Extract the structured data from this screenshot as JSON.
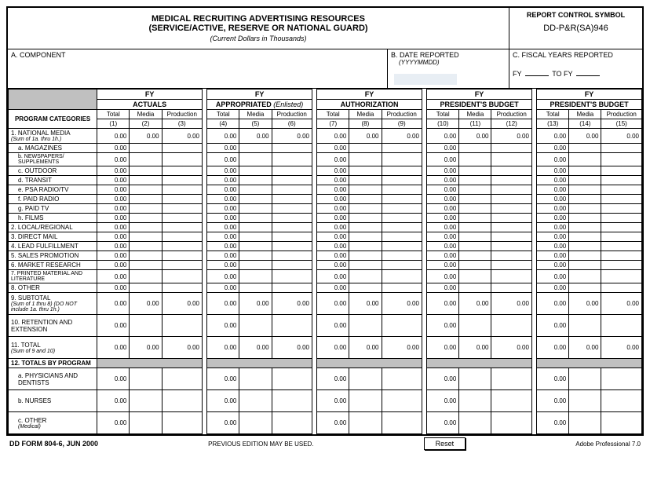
{
  "header": {
    "title1": "MEDICAL RECRUITING ADVERTISING RESOURCES",
    "title2": "(SERVICE/ACTIVE, RESERVE OR NATIONAL GUARD)",
    "subtitle": "(Current Dollars in Thousands)",
    "rcs_label": "REPORT CONTROL SYMBOL",
    "rcs_value": "DD-P&R(SA)946"
  },
  "sections": {
    "a_label": "A.  COMPONENT",
    "b_label": "B.  DATE REPORTED",
    "b_sub": "(YYYYMMDD)",
    "c_label": "C.  FISCAL YEARS REPORTED",
    "fy_prefix": "FY",
    "to": "TO FY"
  },
  "col_groups": {
    "g1": "ACTUALS",
    "g2_a": "APPROPRIATED",
    "g2_b": "(Enlisted)",
    "g3": "AUTHORIZATION",
    "g4": "PRESIDENT'S BUDGET",
    "g5": "PRESIDENT'S BUDGET",
    "fy": "FY"
  },
  "cols": {
    "prog": "PROGRAM CATEGORIES",
    "total": "Total",
    "media": "Media",
    "prod": "Production",
    "n1": "(1)",
    "n2": "(2)",
    "n3": "(3)",
    "n4": "(4)",
    "n5": "(5)",
    "n6": "(6)",
    "n7": "(7)",
    "n8": "(8)",
    "n9": "(9)",
    "n10": "(10)",
    "n11": "(11)",
    "n12": "(12)",
    "n13": "(13)",
    "n14": "(14)",
    "n15": "(15)"
  },
  "rows": [
    {
      "label": "1. NATIONAL MEDIA",
      "sub": "(Sum of 1a. thru 1h.)",
      "full": true,
      "tall": false
    },
    {
      "label": "a.  MAGAZINES",
      "indent": true
    },
    {
      "label": "b.  NEWSPAPERS/ SUPPLEMENTS",
      "indent": true,
      "small": true
    },
    {
      "label": "c.  OUTDOOR",
      "indent": true
    },
    {
      "label": "d.  TRANSIT",
      "indent": true
    },
    {
      "label": "e.  PSA RADIO/TV",
      "indent": true
    },
    {
      "label": "f.  PAID RADIO",
      "indent": true
    },
    {
      "label": "g.  PAID TV",
      "indent": true
    },
    {
      "label": "h.  FILMS",
      "indent": true
    },
    {
      "label": "2. LOCAL/REGIONAL"
    },
    {
      "label": "3. DIRECT MAIL"
    },
    {
      "label": "4. LEAD FULFILLMENT"
    },
    {
      "label": "5. SALES PROMOTION"
    },
    {
      "label": "6. MARKET RESEARCH"
    },
    {
      "label": "7. PRINTED MATERIAL AND LITERATURE",
      "small": true
    },
    {
      "label": "8. OTHER"
    },
    {
      "label": "9. SUBTOTAL",
      "sub": "(Sum of 1 thru 8) (DO NOT include 1a. thru 1h.)",
      "full": true,
      "tall": true
    },
    {
      "label": "10. RETENTION AND EXTENSION",
      "tall": true
    },
    {
      "label": "11. TOTAL",
      "sub": "(Sum of 9 and 10)",
      "full": true,
      "tall": true
    },
    {
      "label": "12. TOTALS BY PROGRAM",
      "header": true
    },
    {
      "label": "a.  PHYSICIANS AND DENTISTS",
      "indent": true,
      "tall": true
    },
    {
      "label": "b.  NURSES",
      "indent": true,
      "tall": true
    },
    {
      "label": "c.  OTHER",
      "sub": "(Medical)",
      "indent": true,
      "tall": true
    }
  ],
  "zero": "0.00",
  "footer": {
    "form": "DD FORM 804-6, JUN 2000",
    "prev": "PREVIOUS EDITION MAY BE USED.",
    "reset": "Reset",
    "adobe": "Adobe Professional 7.0"
  }
}
